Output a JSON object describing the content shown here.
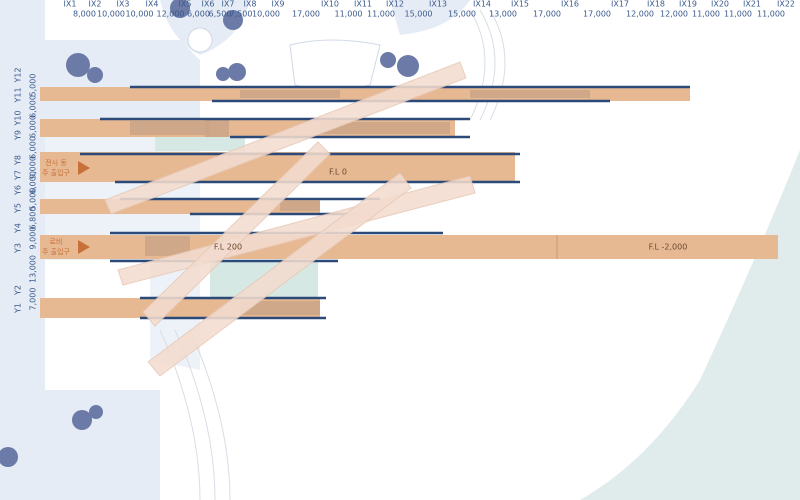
{
  "grid_x": {
    "labels": [
      "IX1",
      "IX2",
      "IX3",
      "IX4",
      "IX5",
      "IX6",
      "IX7",
      "IX8",
      "IX9",
      "IX10",
      "IX11",
      "IX12",
      "IX13",
      "IX14",
      "IX15",
      "IX16",
      "IX17",
      "IX18",
      "IX19",
      "IX20",
      "IX21",
      "IX22"
    ],
    "spacings": [
      "8,000",
      "10,000",
      "10,000",
      "12,000",
      "6,000",
      "6,500",
      "7,500",
      "10,000",
      "17,000",
      "11,000",
      "11,000",
      "15,000",
      "15,000",
      "13,000",
      "17,000",
      "17,000",
      "12,000",
      "12,000",
      "11,000",
      "11,000",
      "11,000"
    ]
  },
  "grid_y": {
    "labels": [
      "Y12",
      "Y11",
      "Y10",
      "Y9",
      "Y8",
      "Y7",
      "Y6",
      "Y5",
      "Y4",
      "Y3",
      "Y2",
      "Y1"
    ],
    "spacings": [
      "5,000",
      "6,000",
      "6,000",
      "6,000",
      "9,000",
      "6,000",
      "5,000",
      "6,800",
      "9,000",
      "13,000",
      "7,000"
    ]
  },
  "floor_levels": [
    "F.L 0",
    "F.L 200",
    "F.L -2,000"
  ],
  "entrances": [
    {
      "line1": "전시 동",
      "line2": "주 출입구"
    },
    {
      "line1": "로비",
      "line2": "주 출입구"
    }
  ]
}
